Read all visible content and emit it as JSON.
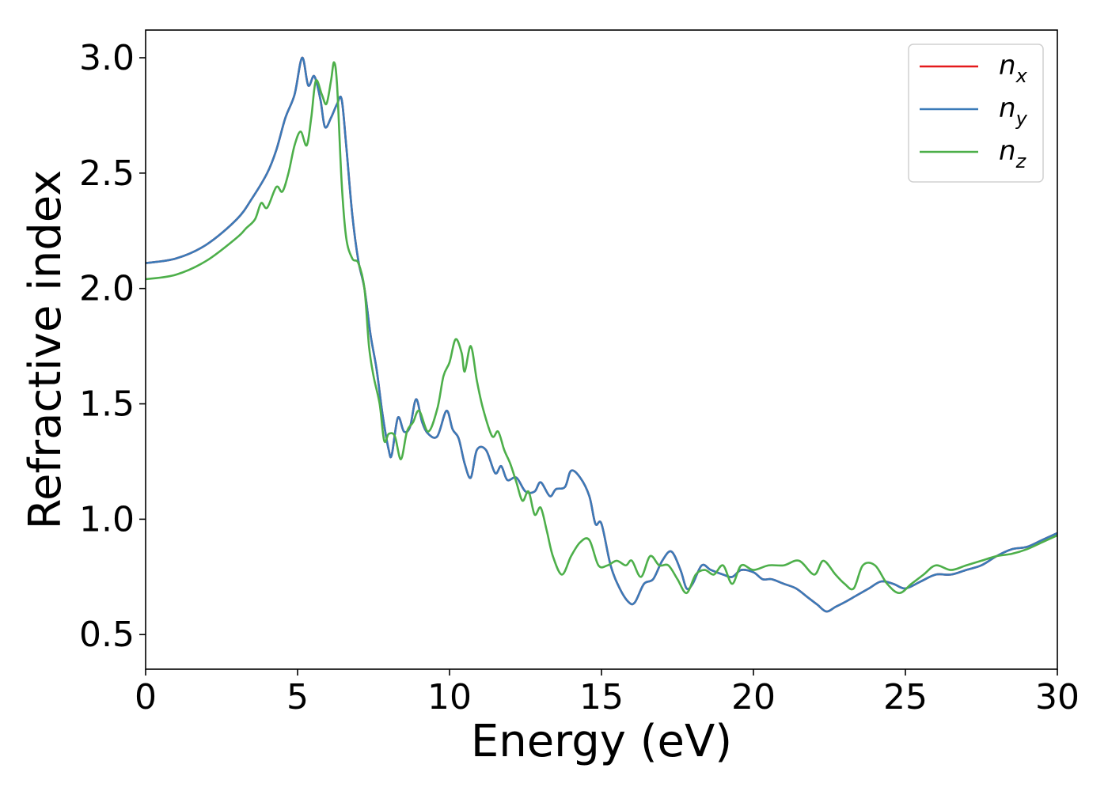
{
  "chart_data": {
    "type": "line",
    "title": "",
    "xlabel": "Energy (eV)",
    "ylabel": "Refractive index",
    "xlim": [
      0,
      30
    ],
    "ylim": [
      0.35,
      3.12
    ],
    "xticks": [
      0,
      5,
      10,
      15,
      20,
      25,
      30
    ],
    "xtick_labels": [
      "0",
      "5",
      "10",
      "15",
      "20",
      "25",
      "30"
    ],
    "yticks": [
      0.5,
      1.0,
      1.5,
      2.0,
      2.5,
      3.0
    ],
    "ytick_labels": [
      "0.5",
      "1.0",
      "1.5",
      "2.0",
      "2.5",
      "3.0"
    ],
    "grid": false,
    "legend_position": "top-right",
    "series": [
      {
        "name": "n",
        "subscript": "x",
        "color": "#e41a1c",
        "points": [
          [
            0,
            2.11
          ],
          [
            1,
            2.13
          ],
          [
            2,
            2.19
          ],
          [
            3,
            2.3
          ],
          [
            3.5,
            2.39
          ],
          [
            4,
            2.5
          ],
          [
            4.3,
            2.6
          ],
          [
            4.6,
            2.74
          ],
          [
            4.9,
            2.84
          ],
          [
            5.15,
            3.0
          ],
          [
            5.35,
            2.88
          ],
          [
            5.55,
            2.92
          ],
          [
            5.75,
            2.82
          ],
          [
            5.9,
            2.7
          ],
          [
            6.1,
            2.74
          ],
          [
            6.3,
            2.8
          ],
          [
            6.45,
            2.82
          ],
          [
            6.6,
            2.62
          ],
          [
            6.8,
            2.32
          ],
          [
            7.0,
            2.12
          ],
          [
            7.2,
            2.0
          ],
          [
            7.4,
            1.8
          ],
          [
            7.6,
            1.65
          ],
          [
            7.8,
            1.45
          ],
          [
            8.0,
            1.3
          ],
          [
            8.1,
            1.28
          ],
          [
            8.3,
            1.44
          ],
          [
            8.5,
            1.38
          ],
          [
            8.7,
            1.4
          ],
          [
            8.9,
            1.52
          ],
          [
            9.1,
            1.42
          ],
          [
            9.3,
            1.37
          ],
          [
            9.6,
            1.36
          ],
          [
            9.9,
            1.47
          ],
          [
            10.1,
            1.39
          ],
          [
            10.3,
            1.35
          ],
          [
            10.5,
            1.24
          ],
          [
            10.7,
            1.18
          ],
          [
            10.9,
            1.3
          ],
          [
            11.2,
            1.3
          ],
          [
            11.5,
            1.2
          ],
          [
            11.7,
            1.23
          ],
          [
            11.9,
            1.17
          ],
          [
            12.2,
            1.18
          ],
          [
            12.5,
            1.12
          ],
          [
            12.8,
            1.12
          ],
          [
            13.0,
            1.16
          ],
          [
            13.3,
            1.1
          ],
          [
            13.5,
            1.13
          ],
          [
            13.8,
            1.14
          ],
          [
            14.0,
            1.21
          ],
          [
            14.3,
            1.18
          ],
          [
            14.6,
            1.1
          ],
          [
            14.8,
            0.98
          ],
          [
            15.0,
            0.98
          ],
          [
            15.3,
            0.8
          ],
          [
            15.6,
            0.7
          ],
          [
            15.9,
            0.64
          ],
          [
            16.1,
            0.64
          ],
          [
            16.4,
            0.72
          ],
          [
            16.7,
            0.74
          ],
          [
            17.0,
            0.82
          ],
          [
            17.3,
            0.86
          ],
          [
            17.6,
            0.78
          ],
          [
            17.8,
            0.7
          ],
          [
            18.0,
            0.72
          ],
          [
            18.3,
            0.8
          ],
          [
            18.6,
            0.78
          ],
          [
            19.0,
            0.76
          ],
          [
            19.3,
            0.75
          ],
          [
            19.6,
            0.78
          ],
          [
            20.0,
            0.77
          ],
          [
            20.3,
            0.74
          ],
          [
            20.6,
            0.74
          ],
          [
            21.0,
            0.72
          ],
          [
            21.4,
            0.7
          ],
          [
            21.8,
            0.66
          ],
          [
            22.1,
            0.63
          ],
          [
            22.4,
            0.6
          ],
          [
            22.7,
            0.62
          ],
          [
            23.0,
            0.64
          ],
          [
            23.4,
            0.67
          ],
          [
            23.8,
            0.7
          ],
          [
            24.2,
            0.73
          ],
          [
            24.6,
            0.72
          ],
          [
            25.0,
            0.7
          ],
          [
            25.5,
            0.73
          ],
          [
            26.0,
            0.76
          ],
          [
            26.5,
            0.76
          ],
          [
            27.0,
            0.78
          ],
          [
            27.5,
            0.8
          ],
          [
            28.0,
            0.84
          ],
          [
            28.5,
            0.87
          ],
          [
            29.0,
            0.88
          ],
          [
            29.5,
            0.91
          ],
          [
            30.0,
            0.94
          ]
        ]
      },
      {
        "name": "n",
        "subscript": "y",
        "color": "#3a7ab8",
        "points": [
          [
            0,
            2.11
          ],
          [
            1,
            2.13
          ],
          [
            2,
            2.19
          ],
          [
            3,
            2.3
          ],
          [
            3.5,
            2.39
          ],
          [
            4,
            2.5
          ],
          [
            4.3,
            2.6
          ],
          [
            4.6,
            2.74
          ],
          [
            4.9,
            2.84
          ],
          [
            5.15,
            3.0
          ],
          [
            5.35,
            2.88
          ],
          [
            5.55,
            2.92
          ],
          [
            5.75,
            2.82
          ],
          [
            5.9,
            2.7
          ],
          [
            6.1,
            2.74
          ],
          [
            6.3,
            2.8
          ],
          [
            6.45,
            2.82
          ],
          [
            6.6,
            2.62
          ],
          [
            6.8,
            2.32
          ],
          [
            7.0,
            2.12
          ],
          [
            7.2,
            2.0
          ],
          [
            7.4,
            1.8
          ],
          [
            7.6,
            1.65
          ],
          [
            7.8,
            1.45
          ],
          [
            8.0,
            1.3
          ],
          [
            8.1,
            1.28
          ],
          [
            8.3,
            1.44
          ],
          [
            8.5,
            1.38
          ],
          [
            8.7,
            1.4
          ],
          [
            8.9,
            1.52
          ],
          [
            9.1,
            1.42
          ],
          [
            9.3,
            1.37
          ],
          [
            9.6,
            1.36
          ],
          [
            9.9,
            1.47
          ],
          [
            10.1,
            1.39
          ],
          [
            10.3,
            1.35
          ],
          [
            10.5,
            1.24
          ],
          [
            10.7,
            1.18
          ],
          [
            10.9,
            1.3
          ],
          [
            11.2,
            1.3
          ],
          [
            11.5,
            1.2
          ],
          [
            11.7,
            1.23
          ],
          [
            11.9,
            1.17
          ],
          [
            12.2,
            1.18
          ],
          [
            12.5,
            1.12
          ],
          [
            12.8,
            1.12
          ],
          [
            13.0,
            1.16
          ],
          [
            13.3,
            1.1
          ],
          [
            13.5,
            1.13
          ],
          [
            13.8,
            1.14
          ],
          [
            14.0,
            1.21
          ],
          [
            14.3,
            1.18
          ],
          [
            14.6,
            1.1
          ],
          [
            14.8,
            0.98
          ],
          [
            15.0,
            0.98
          ],
          [
            15.3,
            0.8
          ],
          [
            15.6,
            0.7
          ],
          [
            15.9,
            0.64
          ],
          [
            16.1,
            0.64
          ],
          [
            16.4,
            0.72
          ],
          [
            16.7,
            0.74
          ],
          [
            17.0,
            0.82
          ],
          [
            17.3,
            0.86
          ],
          [
            17.6,
            0.78
          ],
          [
            17.8,
            0.7
          ],
          [
            18.0,
            0.72
          ],
          [
            18.3,
            0.8
          ],
          [
            18.6,
            0.78
          ],
          [
            19.0,
            0.76
          ],
          [
            19.3,
            0.75
          ],
          [
            19.6,
            0.78
          ],
          [
            20.0,
            0.77
          ],
          [
            20.3,
            0.74
          ],
          [
            20.6,
            0.74
          ],
          [
            21.0,
            0.72
          ],
          [
            21.4,
            0.7
          ],
          [
            21.8,
            0.66
          ],
          [
            22.1,
            0.63
          ],
          [
            22.4,
            0.6
          ],
          [
            22.7,
            0.62
          ],
          [
            23.0,
            0.64
          ],
          [
            23.4,
            0.67
          ],
          [
            23.8,
            0.7
          ],
          [
            24.2,
            0.73
          ],
          [
            24.6,
            0.72
          ],
          [
            25.0,
            0.7
          ],
          [
            25.5,
            0.73
          ],
          [
            26.0,
            0.76
          ],
          [
            26.5,
            0.76
          ],
          [
            27.0,
            0.78
          ],
          [
            27.5,
            0.8
          ],
          [
            28.0,
            0.84
          ],
          [
            28.5,
            0.87
          ],
          [
            29.0,
            0.88
          ],
          [
            29.5,
            0.91
          ],
          [
            30.0,
            0.94
          ]
        ]
      },
      {
        "name": "n",
        "subscript": "z",
        "color": "#4daf4a",
        "points": [
          [
            0,
            2.04
          ],
          [
            1,
            2.06
          ],
          [
            2,
            2.12
          ],
          [
            3,
            2.22
          ],
          [
            3.3,
            2.26
          ],
          [
            3.6,
            2.3
          ],
          [
            3.8,
            2.37
          ],
          [
            4.0,
            2.35
          ],
          [
            4.3,
            2.44
          ],
          [
            4.5,
            2.42
          ],
          [
            4.7,
            2.5
          ],
          [
            4.9,
            2.62
          ],
          [
            5.1,
            2.68
          ],
          [
            5.3,
            2.62
          ],
          [
            5.45,
            2.74
          ],
          [
            5.6,
            2.9
          ],
          [
            5.8,
            2.84
          ],
          [
            5.95,
            2.8
          ],
          [
            6.1,
            2.9
          ],
          [
            6.2,
            2.98
          ],
          [
            6.3,
            2.88
          ],
          [
            6.45,
            2.46
          ],
          [
            6.6,
            2.22
          ],
          [
            6.8,
            2.13
          ],
          [
            7.0,
            2.11
          ],
          [
            7.2,
            2.0
          ],
          [
            7.35,
            1.75
          ],
          [
            7.5,
            1.62
          ],
          [
            7.7,
            1.5
          ],
          [
            7.85,
            1.34
          ],
          [
            8.0,
            1.37
          ],
          [
            8.2,
            1.36
          ],
          [
            8.4,
            1.26
          ],
          [
            8.6,
            1.38
          ],
          [
            8.8,
            1.42
          ],
          [
            9.0,
            1.47
          ],
          [
            9.3,
            1.38
          ],
          [
            9.6,
            1.48
          ],
          [
            9.8,
            1.62
          ],
          [
            10.0,
            1.68
          ],
          [
            10.2,
            1.78
          ],
          [
            10.4,
            1.72
          ],
          [
            10.5,
            1.64
          ],
          [
            10.7,
            1.75
          ],
          [
            10.9,
            1.6
          ],
          [
            11.1,
            1.48
          ],
          [
            11.4,
            1.36
          ],
          [
            11.6,
            1.38
          ],
          [
            11.8,
            1.3
          ],
          [
            12.0,
            1.24
          ],
          [
            12.2,
            1.16
          ],
          [
            12.4,
            1.08
          ],
          [
            12.6,
            1.12
          ],
          [
            12.8,
            1.02
          ],
          [
            13.0,
            1.05
          ],
          [
            13.2,
            0.95
          ],
          [
            13.4,
            0.84
          ],
          [
            13.7,
            0.76
          ],
          [
            14.0,
            0.84
          ],
          [
            14.3,
            0.9
          ],
          [
            14.6,
            0.91
          ],
          [
            14.9,
            0.8
          ],
          [
            15.2,
            0.8
          ],
          [
            15.5,
            0.82
          ],
          [
            15.8,
            0.8
          ],
          [
            16.0,
            0.82
          ],
          [
            16.3,
            0.75
          ],
          [
            16.6,
            0.84
          ],
          [
            16.9,
            0.8
          ],
          [
            17.2,
            0.8
          ],
          [
            17.5,
            0.74
          ],
          [
            17.8,
            0.68
          ],
          [
            18.1,
            0.76
          ],
          [
            18.4,
            0.78
          ],
          [
            18.7,
            0.76
          ],
          [
            19.0,
            0.8
          ],
          [
            19.3,
            0.72
          ],
          [
            19.6,
            0.8
          ],
          [
            20.0,
            0.78
          ],
          [
            20.5,
            0.8
          ],
          [
            21.0,
            0.8
          ],
          [
            21.5,
            0.82
          ],
          [
            22.0,
            0.76
          ],
          [
            22.3,
            0.82
          ],
          [
            22.7,
            0.76
          ],
          [
            23.0,
            0.72
          ],
          [
            23.3,
            0.7
          ],
          [
            23.6,
            0.8
          ],
          [
            24.0,
            0.8
          ],
          [
            24.4,
            0.72
          ],
          [
            24.8,
            0.68
          ],
          [
            25.2,
            0.72
          ],
          [
            25.6,
            0.76
          ],
          [
            26.0,
            0.8
          ],
          [
            26.5,
            0.78
          ],
          [
            27.0,
            0.8
          ],
          [
            27.5,
            0.82
          ],
          [
            28.0,
            0.84
          ],
          [
            28.5,
            0.85
          ],
          [
            29.0,
            0.87
          ],
          [
            29.5,
            0.9
          ],
          [
            30.0,
            0.93
          ]
        ]
      }
    ]
  }
}
